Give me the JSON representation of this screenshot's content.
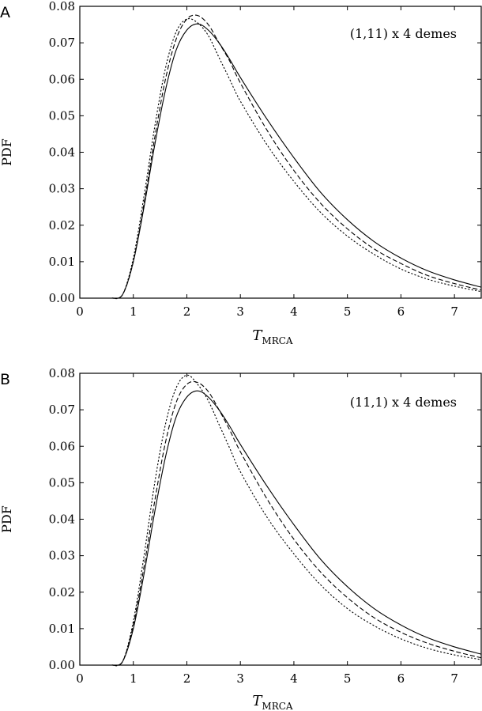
{
  "chart_data": [
    {
      "type": "line",
      "panel_label": "A",
      "annotation": "(1,11) x 4 demes",
      "xlabel": "T",
      "xlabel_sub": "MRCA",
      "ylabel": "PDF",
      "xlim": [
        0,
        7.5
      ],
      "ylim": [
        0,
        0.08
      ],
      "xticks": [
        "0",
        "1",
        "2",
        "3",
        "4",
        "5",
        "6",
        "7"
      ],
      "yticks": [
        "0.00",
        "0.01",
        "0.02",
        "0.03",
        "0.04",
        "0.05",
        "0.06",
        "0.07",
        "0.08"
      ],
      "x": [
        0.6,
        0.8,
        1.0,
        1.2,
        1.4,
        1.6,
        1.8,
        2.0,
        2.2,
        2.4,
        2.6,
        2.8,
        3.0,
        3.5,
        4.0,
        4.5,
        5.0,
        5.5,
        6.0,
        6.5,
        7.0,
        7.5
      ],
      "series": [
        {
          "style": "solid",
          "values": [
            0.0,
            0.001,
            0.01,
            0.025,
            0.042,
            0.057,
            0.068,
            0.0735,
            0.0752,
            0.0735,
            0.07,
            0.0655,
            0.0605,
            0.049,
            0.0385,
            0.029,
            0.0215,
            0.0155,
            0.011,
            0.0075,
            0.005,
            0.003
          ]
        },
        {
          "style": "dashed",
          "values": [
            0.0,
            0.001,
            0.01,
            0.026,
            0.044,
            0.06,
            0.071,
            0.0765,
            0.0775,
            0.075,
            0.07,
            0.065,
            0.059,
            0.046,
            0.035,
            0.026,
            0.019,
            0.0135,
            0.0095,
            0.0062,
            0.004,
            0.0022
          ]
        },
        {
          "style": "dotted",
          "values": [
            0.0,
            0.001,
            0.011,
            0.028,
            0.047,
            0.063,
            0.073,
            0.0765,
            0.0755,
            0.072,
            0.066,
            0.06,
            0.054,
            0.042,
            0.032,
            0.0235,
            0.017,
            0.012,
            0.008,
            0.0052,
            0.0033,
            0.0018
          ]
        }
      ]
    },
    {
      "type": "line",
      "panel_label": "B",
      "annotation": "(11,1) x 4 demes",
      "xlabel": "T",
      "xlabel_sub": "MRCA",
      "ylabel": "PDF",
      "xlim": [
        0,
        7.5
      ],
      "ylim": [
        0,
        0.08
      ],
      "xticks": [
        "0",
        "1",
        "2",
        "3",
        "4",
        "5",
        "6",
        "7"
      ],
      "yticks": [
        "0.00",
        "0.01",
        "0.02",
        "0.03",
        "0.04",
        "0.05",
        "0.06",
        "0.07",
        "0.08"
      ],
      "x": [
        0.6,
        0.8,
        1.0,
        1.2,
        1.4,
        1.6,
        1.8,
        2.0,
        2.2,
        2.4,
        2.6,
        2.8,
        3.0,
        3.5,
        4.0,
        4.5,
        5.0,
        5.5,
        6.0,
        6.5,
        7.0,
        7.5
      ],
      "series": [
        {
          "style": "solid",
          "values": [
            0.0,
            0.001,
            0.01,
            0.025,
            0.042,
            0.057,
            0.068,
            0.0735,
            0.0752,
            0.0735,
            0.07,
            0.0655,
            0.0605,
            0.049,
            0.0385,
            0.029,
            0.0215,
            0.0155,
            0.011,
            0.0075,
            0.005,
            0.003
          ]
        },
        {
          "style": "dashed",
          "values": [
            0.0,
            0.001,
            0.011,
            0.027,
            0.045,
            0.061,
            0.072,
            0.077,
            0.0775,
            0.075,
            0.07,
            0.0645,
            0.0585,
            0.0455,
            0.0345,
            0.0255,
            0.0185,
            0.013,
            0.009,
            0.006,
            0.0038,
            0.002
          ]
        },
        {
          "style": "dotted",
          "values": [
            0.0,
            0.001,
            0.012,
            0.03,
            0.05,
            0.066,
            0.076,
            0.0795,
            0.077,
            0.0725,
            0.066,
            0.0595,
            0.053,
            0.0405,
            0.0305,
            0.022,
            0.0155,
            0.0108,
            0.0072,
            0.0046,
            0.0028,
            0.0015
          ]
        }
      ]
    }
  ]
}
